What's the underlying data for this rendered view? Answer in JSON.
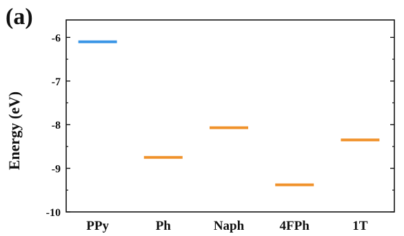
{
  "panel_label": "(a)",
  "chart_data": {
    "type": "bar",
    "title": "",
    "xlabel": "",
    "ylabel": "Energy (eV)",
    "categories": [
      "PPy",
      "Ph",
      "Naph",
      "4FPh",
      "1T"
    ],
    "values": [
      -6.1,
      -8.75,
      -8.07,
      -9.38,
      -8.35
    ],
    "colors": [
      "#3b96e6",
      "#f0922b",
      "#f0922b",
      "#f0922b",
      "#f0922b"
    ],
    "ylim": [
      -10,
      -5.6
    ],
    "yticks": [
      -6,
      -7,
      -8,
      -9,
      -10
    ],
    "ytick_labels": [
      "-6",
      "-7",
      "-8",
      "-9",
      "-10"
    ],
    "grid": false,
    "legend": "none"
  }
}
